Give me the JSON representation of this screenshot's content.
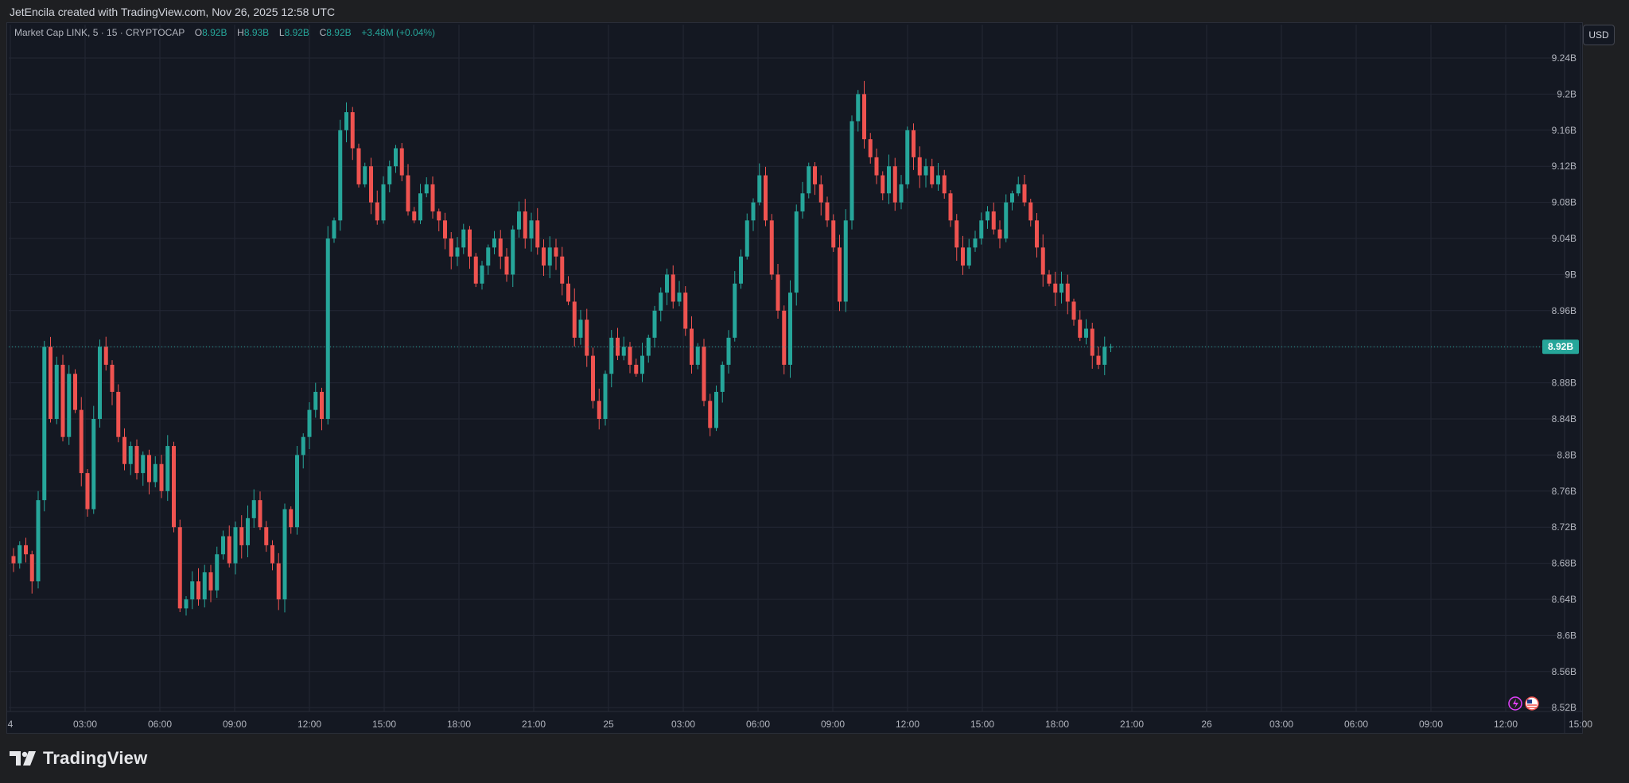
{
  "header": {
    "attribution": "JetEncila created with TradingView.com, Nov 26, 2025 12:58 UTC"
  },
  "legend": {
    "symbol": "Market Cap LINK, 5 · 15 · CRYPTOCAP",
    "o_label": "O",
    "o_value": "8.92B",
    "h_label": "H",
    "h_value": "8.93B",
    "l_label": "L",
    "l_value": "8.92B",
    "c_label": "C",
    "c_value": "8.92B",
    "change": "+3.48M (+0.04%)"
  },
  "price_scale": {
    "currency": "USD",
    "last_price_label": "8.92B"
  },
  "branding": {
    "logo_text": "TradingView"
  },
  "colors": {
    "up": "#26a69a",
    "down": "#ef5350",
    "background": "#141822",
    "grid": "#232734",
    "axis_text": "#b2b5be"
  },
  "chart_data": {
    "type": "candlestick",
    "interval": "15",
    "y_unit": "USD (billions)",
    "ylim": [
      8.515,
      9.265
    ],
    "y_ticks": [
      {
        "label": "9.24B",
        "value": 9.24
      },
      {
        "label": "9.2B",
        "value": 9.2
      },
      {
        "label": "9.16B",
        "value": 9.16
      },
      {
        "label": "9.12B",
        "value": 9.12
      },
      {
        "label": "9.08B",
        "value": 9.08
      },
      {
        "label": "9.04B",
        "value": 9.04
      },
      {
        "label": "9B",
        "value": 9.0
      },
      {
        "label": "8.96B",
        "value": 8.96
      },
      {
        "label": "8.92B",
        "value": 8.92
      },
      {
        "label": "8.88B",
        "value": 8.88
      },
      {
        "label": "8.84B",
        "value": 8.84
      },
      {
        "label": "8.8B",
        "value": 8.8
      },
      {
        "label": "8.76B",
        "value": 8.76
      },
      {
        "label": "8.72B",
        "value": 8.72
      },
      {
        "label": "8.68B",
        "value": 8.68
      },
      {
        "label": "8.64B",
        "value": 8.64
      },
      {
        "label": "8.6B",
        "value": 8.6
      },
      {
        "label": "8.56B",
        "value": 8.56
      },
      {
        "label": "8.52B",
        "value": 8.52
      }
    ],
    "x_ticks": [
      "4",
      "03:00",
      "06:00",
      "09:00",
      "12:00",
      "15:00",
      "18:00",
      "21:00",
      "25",
      "03:00",
      "06:00",
      "09:00",
      "12:00",
      "15:00",
      "18:00",
      "21:00",
      "26",
      "03:00",
      "06:00",
      "09:00",
      "12:00",
      "15:00"
    ],
    "last_price": 8.92,
    "close_path": [
      8.68,
      8.7,
      8.69,
      8.66,
      8.75,
      8.92,
      8.84,
      8.9,
      8.82,
      8.89,
      8.85,
      8.78,
      8.74,
      8.84,
      8.92,
      8.9,
      8.87,
      8.82,
      8.79,
      8.81,
      8.78,
      8.8,
      8.77,
      8.79,
      8.76,
      8.81,
      8.72,
      8.63,
      8.64,
      8.66,
      8.64,
      8.67,
      8.65,
      8.69,
      8.71,
      8.68,
      8.72,
      8.7,
      8.73,
      8.75,
      8.72,
      8.7,
      8.68,
      8.64,
      8.74,
      8.72,
      8.8,
      8.82,
      8.85,
      8.87,
      8.84,
      9.04,
      9.06,
      9.16,
      9.18,
      9.14,
      9.1,
      9.12,
      9.08,
      9.06,
      9.1,
      9.12,
      9.14,
      9.11,
      9.07,
      9.06,
      9.09,
      9.1,
      9.07,
      9.06,
      9.04,
      9.02,
      9.03,
      9.05,
      9.02,
      8.99,
      9.01,
      9.03,
      9.04,
      9.02,
      9.0,
      9.05,
      9.07,
      9.04,
      9.06,
      9.03,
      9.01,
      9.03,
      9.02,
      8.99,
      8.97,
      8.93,
      8.95,
      8.91,
      8.86,
      8.84,
      8.89,
      8.93,
      8.91,
      8.92,
      8.9,
      8.89,
      8.91,
      8.93,
      8.96,
      8.98,
      9.0,
      8.97,
      8.98,
      8.94,
      8.9,
      8.92,
      8.86,
      8.83,
      8.87,
      8.9,
      8.93,
      8.99,
      9.02,
      9.06,
      9.08,
      9.11,
      9.06,
      9.0,
      8.96,
      8.9,
      8.98,
      9.07,
      9.09,
      9.12,
      9.1,
      9.08,
      9.06,
      9.03,
      8.97,
      9.06,
      9.17,
      9.2,
      9.15,
      9.13,
      9.11,
      9.09,
      9.12,
      9.08,
      9.1,
      9.16,
      9.13,
      9.11,
      9.12,
      9.1,
      9.11,
      9.09,
      9.06,
      9.03,
      9.01,
      9.03,
      9.04,
      9.06,
      9.07,
      9.05,
      9.04,
      9.08,
      9.09,
      9.1,
      9.08,
      9.06,
      9.03,
      9.0,
      8.99,
      8.98,
      8.99,
      8.97,
      8.95,
      8.93,
      8.94,
      8.91,
      8.9,
      8.92,
      8.92
    ],
    "series": [
      {
        "name": "Market Cap LINK",
        "values": []
      }
    ]
  }
}
